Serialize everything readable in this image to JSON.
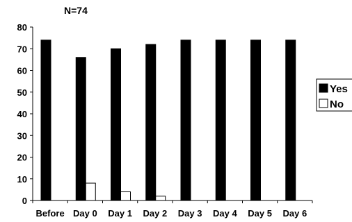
{
  "chart_data": {
    "type": "bar",
    "title": "N=74",
    "categories": [
      "Before",
      "Day 0",
      "Day 1",
      "Day 2",
      "Day 3",
      "Day 4",
      "Day 5",
      "Day 6"
    ],
    "series": [
      {
        "name": "Yes",
        "values": [
          74,
          66,
          70,
          72,
          74,
          74,
          74,
          74
        ],
        "color": "#000000"
      },
      {
        "name": "No",
        "values": [
          0,
          8,
          4,
          2,
          0,
          0,
          0,
          0
        ],
        "color": "#ffffff"
      }
    ],
    "yticks": [
      0,
      10,
      20,
      30,
      40,
      50,
      60,
      70,
      80
    ],
    "ylim": [
      0,
      80
    ],
    "xlabel": "",
    "ylabel": "",
    "grid": false,
    "legend": "right"
  }
}
